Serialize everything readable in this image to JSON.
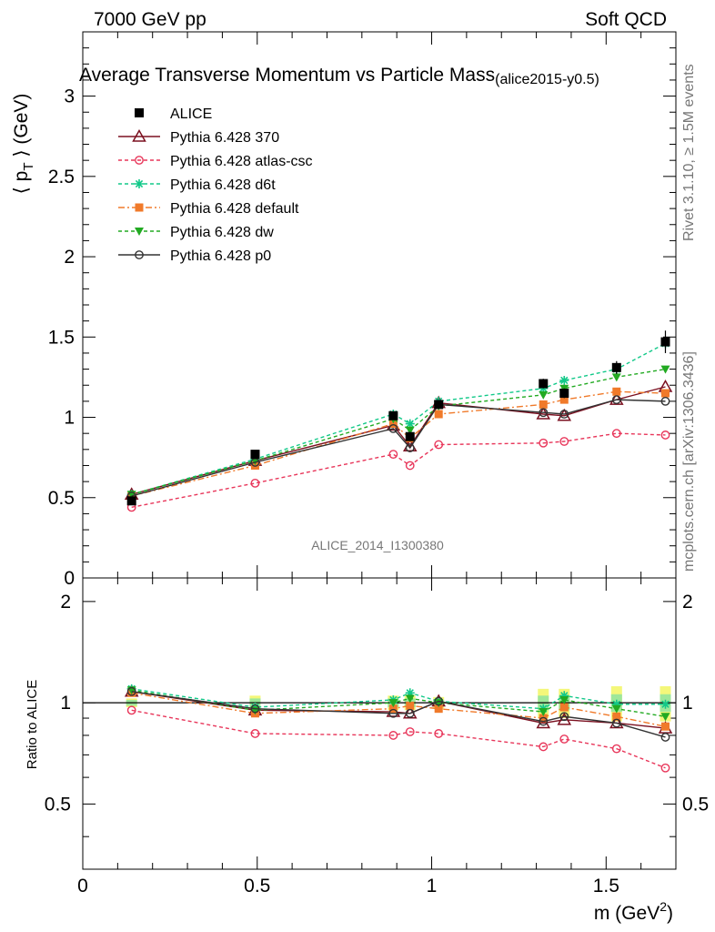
{
  "header": {
    "left": "7000 GeV pp",
    "right": "Soft QCD",
    "title": "Average Transverse Momentum vs Particle Mass",
    "title_tag": "(alice2015-y0.5)",
    "side_top": "Rivet 3.1.10, ≥ 1.5M events",
    "side_bottom": "mcplots.cern.ch [arXiv:1306.3436]",
    "analysis": "ALICE_2014_I1300380"
  },
  "chart_data": {
    "type": "scatter",
    "xlabel": "m (GeV",
    "xlabel_sup": "2",
    "xlabel_close": ")",
    "ylabel": "⟨ p",
    "ylabel_sub": "T",
    "ylabel_close": " ⟩ (GeV)",
    "xlim": [
      0,
      1.7
    ],
    "ylim": [
      0,
      3.4
    ],
    "x_ticks": [
      "0",
      "0.5",
      "1",
      "1.5"
    ],
    "y_ticks": [
      "0",
      "0.5",
      "1",
      "1.5",
      "2",
      "2.5",
      "3"
    ],
    "x": [
      0.14,
      0.494,
      0.89,
      0.938,
      1.02,
      1.32,
      1.38,
      1.53,
      1.67
    ],
    "data": {
      "name": "ALICE",
      "values": [
        0.48,
        0.77,
        1.01,
        0.88,
        1.08,
        1.21,
        1.15,
        1.31,
        1.47
      ],
      "errors": [
        0.01,
        0.02,
        0.02,
        0.02,
        0.02,
        0.03,
        0.03,
        0.04,
        0.07
      ]
    },
    "series": [
      {
        "name": "Pythia 6.428 370",
        "color": "#7b1020",
        "dash": "",
        "marker": "triangle-open",
        "values": [
          0.52,
          0.73,
          0.95,
          0.82,
          1.09,
          1.02,
          1.01,
          1.11,
          1.19
        ]
      },
      {
        "name": "Pythia 6.428 atlas-csc",
        "color": "#e8365a",
        "dash": "4,3",
        "marker": "circle-open",
        "values": [
          0.44,
          0.59,
          0.77,
          0.7,
          0.83,
          0.84,
          0.85,
          0.9,
          0.89
        ]
      },
      {
        "name": "Pythia 6.428 d6t",
        "color": "#12c989",
        "dash": "4,3",
        "marker": "star",
        "values": [
          0.52,
          0.74,
          1.02,
          0.96,
          1.1,
          1.18,
          1.23,
          1.3,
          1.46
        ]
      },
      {
        "name": "Pythia 6.428 default",
        "color": "#f07a2a",
        "dash": "7,3,2,3",
        "marker": "square",
        "values": [
          0.51,
          0.7,
          0.96,
          0.87,
          1.02,
          1.08,
          1.11,
          1.16,
          1.15
        ]
      },
      {
        "name": "Pythia 6.428 dw",
        "color": "#22aa22",
        "dash": "4,3",
        "marker": "triangle-down",
        "values": [
          0.52,
          0.73,
          0.99,
          0.92,
          1.07,
          1.14,
          1.18,
          1.25,
          1.3
        ]
      },
      {
        "name": "Pythia 6.428 p0",
        "color": "#333333",
        "dash": "",
        "marker": "circle-open",
        "values": [
          0.51,
          0.72,
          0.93,
          0.81,
          1.08,
          1.03,
          1.02,
          1.11,
          1.1
        ]
      }
    ],
    "ratio": {
      "ylabel": "Ratio to ALICE",
      "ylim": [
        0.32,
        2.35
      ],
      "y_ticks": [
        "0.5",
        "1",
        "2"
      ],
      "band_inner": [
        0.02,
        0.03,
        0.03,
        0.03,
        0.02,
        0.05,
        0.05,
        0.06,
        0.06
      ],
      "band_outer": [
        0.03,
        0.05,
        0.05,
        0.05,
        0.04,
        0.1,
        0.1,
        0.12,
        0.12
      ],
      "series": [
        [
          1.08,
          0.95,
          0.94,
          0.93,
          1.01,
          0.87,
          0.89,
          0.87,
          0.84
        ],
        [
          0.95,
          0.81,
          0.8,
          0.82,
          0.81,
          0.74,
          0.78,
          0.73,
          0.64
        ],
        [
          1.1,
          0.97,
          1.02,
          1.07,
          1.01,
          0.96,
          1.05,
          0.99,
          0.99
        ],
        [
          1.07,
          0.93,
          0.96,
          0.98,
          0.96,
          0.9,
          0.97,
          0.91,
          0.85
        ],
        [
          1.09,
          0.95,
          1.0,
          1.03,
          1.0,
          0.94,
          1.02,
          0.96,
          0.91
        ],
        [
          1.08,
          0.96,
          0.93,
          0.93,
          1.01,
          0.88,
          0.91,
          0.87,
          0.79
        ]
      ]
    }
  }
}
